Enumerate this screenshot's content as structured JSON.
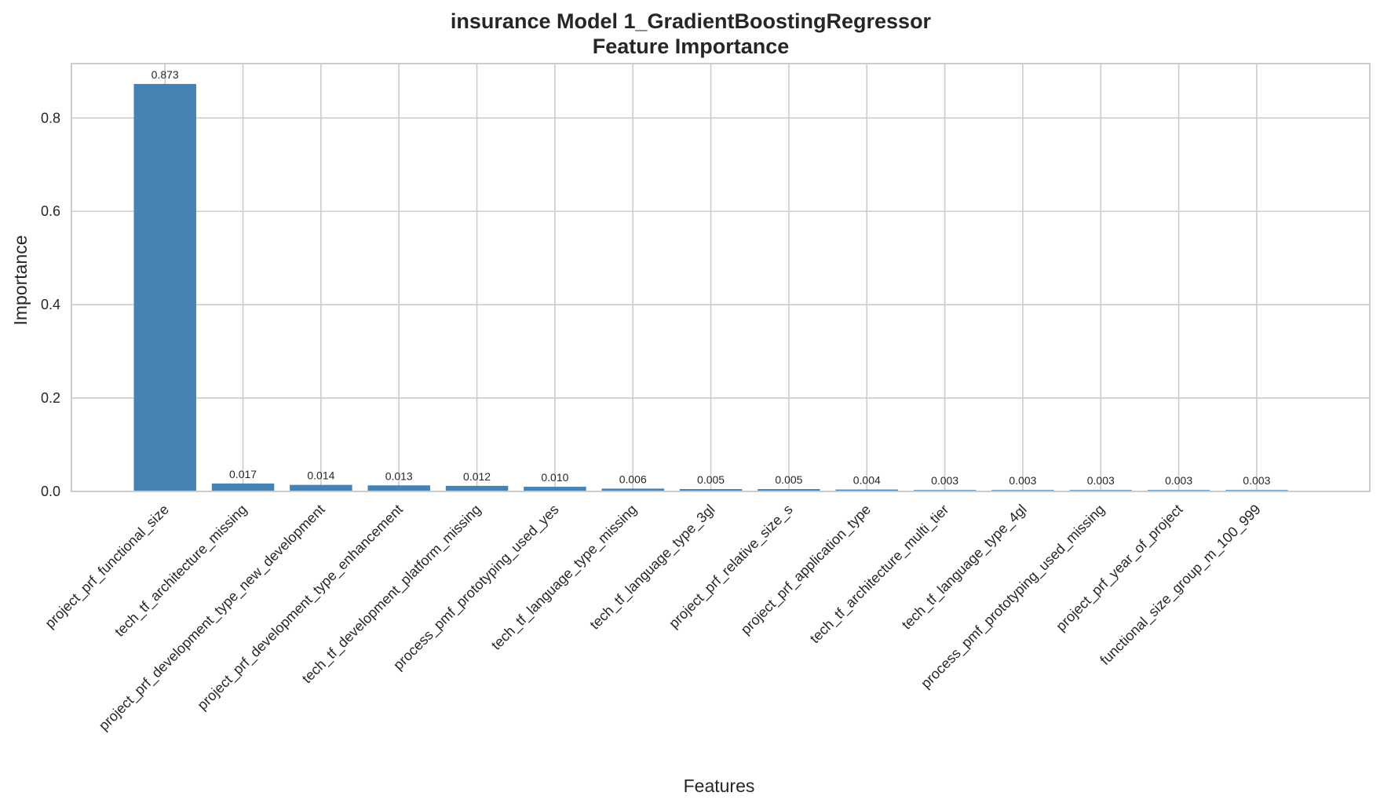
{
  "chart_data": {
    "type": "bar",
    "title": "insurance Model 1_GradientBoostingRegressor",
    "subtitle": "Feature Importance",
    "xlabel": "Features",
    "ylabel": "Importance",
    "ylim": [
      0,
      0.9166
    ],
    "yticks": [
      "0.0",
      "0.2",
      "0.4",
      "0.6",
      "0.8"
    ],
    "ytick_values": [
      0,
      0.2,
      0.4,
      0.6,
      0.8
    ],
    "grid": true,
    "bar_color": "#4682b4",
    "categories": [
      "project_prf_functional_size",
      "tech_tf_architecture_missing",
      "project_prf_development_type_new_development",
      "project_prf_development_type_enhancement",
      "tech_tf_development_platform_missing",
      "process_pmf_prototyping_used_yes",
      "tech_tf_language_type_missing",
      "tech_tf_language_type_3gl",
      "project_prf_relative_size_s",
      "project_prf_application_type",
      "tech_tf_architecture_multi_tier",
      "tech_tf_language_type_4gl",
      "process_pmf_prototyping_used_missing",
      "project_prf_year_of_project",
      "functional_size_group_m_100_999"
    ],
    "values": [
      0.873,
      0.017,
      0.014,
      0.013,
      0.012,
      0.01,
      0.006,
      0.005,
      0.005,
      0.004,
      0.003,
      0.003,
      0.003,
      0.003,
      0.003
    ],
    "value_labels": [
      "0.873",
      "0.017",
      "0.014",
      "0.013",
      "0.012",
      "0.010",
      "0.006",
      "0.005",
      "0.005",
      "0.004",
      "0.003",
      "0.003",
      "0.003",
      "0.003",
      "0.003"
    ]
  }
}
